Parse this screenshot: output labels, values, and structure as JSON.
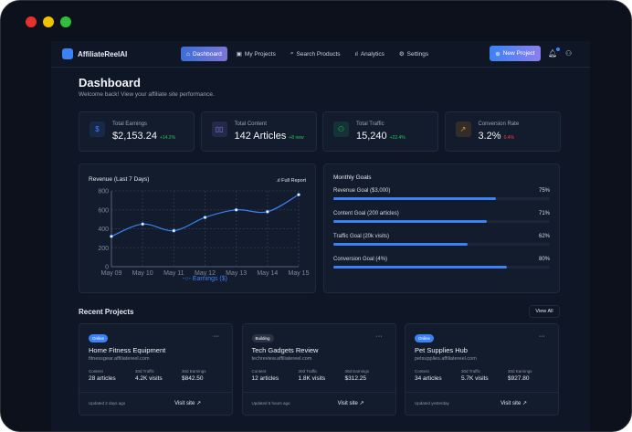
{
  "nav": {
    "brand": "AffiliateReelAI",
    "items": [
      {
        "label": "Dashboard",
        "icon": "home-icon",
        "active": true
      },
      {
        "label": "My Projects",
        "icon": "folder-icon"
      },
      {
        "label": "Search Products",
        "icon": "search-icon"
      },
      {
        "label": "Analytics",
        "icon": "bar-chart-icon"
      },
      {
        "label": "Settings",
        "icon": "gear-icon"
      }
    ],
    "new_project": "New Project"
  },
  "header": {
    "title": "Dashboard",
    "subtitle": "Welcome back! View your affiliate site performance."
  },
  "stats": [
    {
      "label": "Total Earnings",
      "value": "$2,153.24",
      "change": "+14.2%",
      "icon": "dollar-icon",
      "color": "#3b82f6",
      "change_color": "#22c55e"
    },
    {
      "label": "Total Content",
      "value": "142 Articles",
      "change": "+8 new",
      "icon": "book-icon",
      "color": "#8b7ff0",
      "change_color": "#22c55e"
    },
    {
      "label": "Total Traffic",
      "value": "15,240",
      "change": "+22.4%",
      "icon": "users-icon",
      "color": "#22c55e",
      "change_color": "#22c55e"
    },
    {
      "label": "Conversion Rate",
      "value": "3.2%",
      "change": "0.4%",
      "icon": "trend-up-icon",
      "color": "#f59e0b",
      "change_color": "#ef4444"
    }
  ],
  "chart_data": {
    "type": "line",
    "title": "Revenue (Last 7 Days)",
    "categories": [
      "May 09",
      "May 10",
      "May 11",
      "May 12",
      "May 13",
      "May 14",
      "May 15"
    ],
    "series": [
      {
        "name": "Earnings ($)",
        "values": [
          320,
          450,
          380,
          520,
          600,
          580,
          760
        ],
        "color": "#3b82f6"
      }
    ],
    "ylim": [
      0,
      800
    ],
    "yticks": [
      "0",
      "200",
      "400",
      "600",
      "800"
    ],
    "grid": true,
    "legend": "bottom"
  },
  "full_report": "Full Report",
  "goals": {
    "title": "Monthly Goals",
    "items": [
      {
        "label": "Revenue Goal ($3,000)",
        "percent": 75,
        "text": "75%"
      },
      {
        "label": "Content Goal (200 articles)",
        "percent": 71,
        "text": "71%"
      },
      {
        "label": "Traffic Goal (20k visits)",
        "percent": 62,
        "text": "62%"
      },
      {
        "label": "Conversion Goal (4%)",
        "percent": 80,
        "text": "80%"
      }
    ]
  },
  "projects": {
    "title": "Recent Projects",
    "view_all": "View All",
    "stat_labels": [
      "Content",
      "30d Traffic",
      "30d Earnings"
    ],
    "visit": "Visit site",
    "items": [
      {
        "status": "Online",
        "status_color": "#3b82f6",
        "name": "Home Fitness Equipment",
        "url": "fitnessgear.affiliatereel.com",
        "content": "28 articles",
        "traffic": "4.2K visits",
        "earnings": "$842.50",
        "updated": "Updated 2 days ago"
      },
      {
        "status": "Building",
        "status_color": "#2a3345",
        "name": "Tech Gadgets Review",
        "url": "techreview.affiliatereel.com",
        "content": "12 articles",
        "traffic": "1.8K visits",
        "earnings": "$312.25",
        "updated": "Updated 5 hours ago"
      },
      {
        "status": "Online",
        "status_color": "#3b82f6",
        "name": "Pet Supplies Hub",
        "url": "petsupplies.affiliatereel.com",
        "content": "34 articles",
        "traffic": "5.7K visits",
        "earnings": "$927.80",
        "updated": "Updated yesterday"
      }
    ]
  }
}
